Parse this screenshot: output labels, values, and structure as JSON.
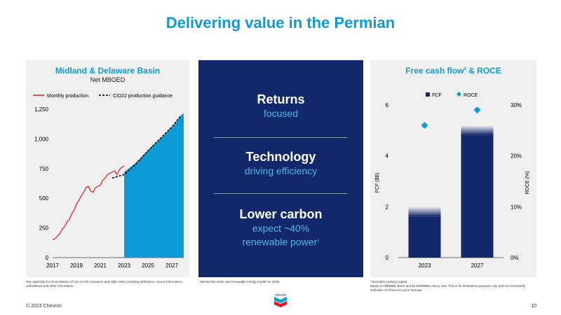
{
  "title": "Delivering value in the Permian",
  "left_panel": {
    "title": "Midland & Delaware Basin",
    "subtitle": "Net MBOED",
    "legend": {
      "monthly": "Monthly production",
      "guidance": "CID22 production guidance"
    },
    "footnote": "See Appendix for reconciliation of non-GAAP measures and slide notes providing definitions, source information, calculations and other information."
  },
  "middle_panel": {
    "blocks": [
      {
        "heading": "Returns",
        "sub": "focused"
      },
      {
        "heading": "Technology",
        "sub": "driving efficiency"
      },
      {
        "heading": "Lower carbon",
        "sub": "expect ~40%",
        "sub2": "renewable power",
        "sup": "1"
      }
    ],
    "footnote": "¹ Behind the meter and renewable energy credits for 2025."
  },
  "right_panel": {
    "title": "Free cash flow",
    "title_sup": "2",
    "title_suffix": " & ROCE",
    "legend": {
      "fcf": "FCF",
      "roce": "ROCE"
    },
    "footnote1": "² Excludes working capital.",
    "footnote2": "Based on $80/BBL Brent and $4.50/MMBtu Henry Hub.  This is for illustrative purposes only and not necessarily indicative of Chevron’s price forecast."
  },
  "footer": {
    "copyright": "© 2023 Chevron",
    "page": "10",
    "logo_text": "Chevron"
  },
  "colors": {
    "accent": "#0b9bd7",
    "navy": "#13286b",
    "red": "#e0191f",
    "fill_blue": "#0b9bd7",
    "panel_bg": "#f0f0f0"
  },
  "chart_data": [
    {
      "type": "area",
      "title": "Midland & Delaware Basin",
      "subtitle": "Net MBOED",
      "x_ticks": [
        "2017",
        "2019",
        "2021",
        "2023",
        "2025",
        "2027"
      ],
      "y_ticks": [
        "0",
        "250",
        "500",
        "750",
        "1,000",
        "1,250"
      ],
      "ylim": [
        0,
        1250
      ],
      "xlim": [
        2017,
        2028
      ],
      "series": [
        {
          "name": "Monthly production",
          "kind": "line",
          "color": "#e0191f",
          "x": [
            2017.0,
            2017.2,
            2017.4,
            2017.6,
            2017.8,
            2018.0,
            2018.2,
            2018.4,
            2018.6,
            2018.8,
            2019.0,
            2019.2,
            2019.4,
            2019.6,
            2019.8,
            2020.0,
            2020.2,
            2020.4,
            2020.6,
            2020.8,
            2021.0,
            2021.2,
            2021.4,
            2021.6,
            2021.8,
            2022.0,
            2022.2,
            2022.4,
            2022.6,
            2022.8,
            2023.0
          ],
          "y": [
            150,
            160,
            180,
            200,
            240,
            260,
            300,
            320,
            370,
            400,
            450,
            480,
            520,
            550,
            590,
            600,
            560,
            550,
            590,
            600,
            610,
            650,
            670,
            700,
            710,
            720,
            730,
            700,
            740,
            760,
            770
          ]
        },
        {
          "name": "CID22 production guidance",
          "kind": "dashed",
          "color": "#000000",
          "x": [
            2022.0,
            2023.0,
            2024.0,
            2025.0,
            2026.0,
            2027.0,
            2027.8
          ],
          "y": [
            670,
            700,
            790,
            900,
            1000,
            1100,
            1200
          ]
        },
        {
          "name": "",
          "kind": "area",
          "color": "#0b9bd7",
          "x": [
            2023.0,
            2024.0,
            2025.0,
            2026.0,
            2027.0,
            2028.0
          ],
          "y": [
            720,
            800,
            905,
            1000,
            1100,
            1220
          ]
        }
      ]
    },
    {
      "type": "bar",
      "title": "Free cash flow² & ROCE",
      "categories": [
        "2023",
        "2027"
      ],
      "ylabel": "FCF ($B)",
      "y2label": "ROCE (%)",
      "ylim": [
        0,
        6
      ],
      "y2lim": [
        0,
        30
      ],
      "y_ticks": [
        "0",
        "2",
        "4",
        "6"
      ],
      "y2_ticks": [
        "0%",
        "10%",
        "20%",
        "30%"
      ],
      "series": [
        {
          "name": "FCF",
          "kind": "bar",
          "values": [
            2.0,
            5.2
          ]
        },
        {
          "name": "ROCE",
          "kind": "marker",
          "values": [
            26,
            29
          ]
        }
      ]
    }
  ]
}
